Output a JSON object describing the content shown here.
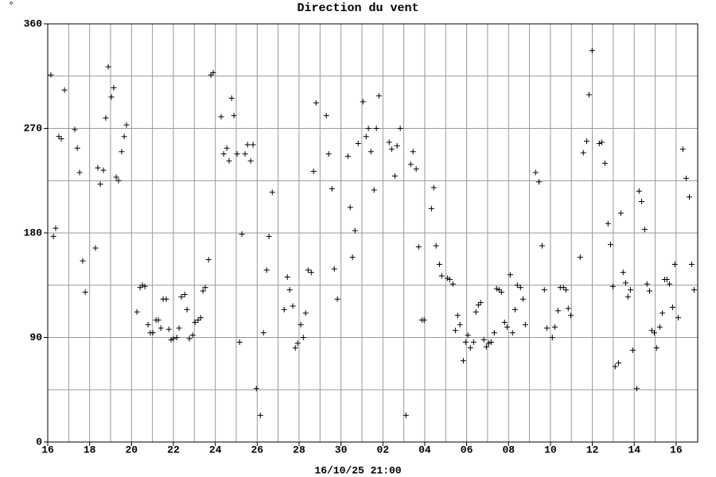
{
  "chart_data": {
    "type": "scatter",
    "title": "Direction du vent",
    "unit_label": "°",
    "x_label": "16/10/25 21:00",
    "marker": "+",
    "color": "#000000",
    "grid": true,
    "grid_color": "#999999",
    "xlim": [
      0,
      31.03
    ],
    "xticks": [
      {
        "value": 0,
        "label": "16"
      },
      {
        "value": 2,
        "label": "18"
      },
      {
        "value": 4,
        "label": "20"
      },
      {
        "value": 6,
        "label": "22"
      },
      {
        "value": 8,
        "label": "24"
      },
      {
        "value": 10,
        "label": "26"
      },
      {
        "value": 12,
        "label": "28"
      },
      {
        "value": 14,
        "label": "30"
      },
      {
        "value": 16,
        "label": "02"
      },
      {
        "value": 18,
        "label": "04"
      },
      {
        "value": 20,
        "label": "06"
      },
      {
        "value": 22,
        "label": "08"
      },
      {
        "value": 24,
        "label": "10"
      },
      {
        "value": 26,
        "label": "12"
      },
      {
        "value": 28,
        "label": "14"
      },
      {
        "value": 30,
        "label": "16"
      }
    ],
    "x_minor_ticks": [
      1,
      3,
      5,
      7,
      9,
      11,
      13,
      15,
      17,
      19,
      21,
      23,
      25,
      27,
      29
    ],
    "ylim": [
      0,
      360
    ],
    "yticks": [
      0,
      90,
      180,
      270,
      360
    ],
    "y_minor_ticks": [
      45,
      135,
      225,
      315
    ],
    "x": [
      0.15,
      0.27,
      0.38,
      0.53,
      0.65,
      0.8,
      1.29,
      1.41,
      1.52,
      1.67,
      1.79,
      2.28,
      2.39,
      2.51,
      2.66,
      2.77,
      2.89,
      3.04,
      3.15,
      3.27,
      3.38,
      3.53,
      3.65,
      3.76,
      4.26,
      4.41,
      4.52,
      4.64,
      4.79,
      4.9,
      5.02,
      5.17,
      5.28,
      5.4,
      5.51,
      5.66,
      5.78,
      5.89,
      6.0,
      6.16,
      6.27,
      6.38,
      6.54,
      6.65,
      6.76,
      6.92,
      7.03,
      7.18,
      7.3,
      7.41,
      7.52,
      7.68,
      7.79,
      7.9,
      8.28,
      8.4,
      8.55,
      8.66,
      8.78,
      8.89,
      9.04,
      9.16,
      9.27,
      9.42,
      9.54,
      9.69,
      9.8,
      9.96,
      10.15,
      10.3,
      10.45,
      10.56,
      10.72,
      11.29,
      11.44,
      11.55,
      11.7,
      11.82,
      11.93,
      12.08,
      12.2,
      12.31,
      12.43,
      12.58,
      12.69,
      12.81,
      13.3,
      13.41,
      13.57,
      13.68,
      13.83,
      14.33,
      14.44,
      14.55,
      14.67,
      14.82,
      15.05,
      15.2,
      15.31,
      15.43,
      15.58,
      15.69,
      15.81,
      16.3,
      16.42,
      16.57,
      16.68,
      16.83,
      17.1,
      17.33,
      17.44,
      17.59,
      17.71,
      17.86,
      17.97,
      18.32,
      18.43,
      18.54,
      18.7,
      18.81,
      19.08,
      19.19,
      19.34,
      19.46,
      19.57,
      19.68,
      19.84,
      19.95,
      20.06,
      20.18,
      20.33,
      20.44,
      20.56,
      20.67,
      20.82,
      20.94,
      21.05,
      21.17,
      21.32,
      21.43,
      21.55,
      21.66,
      21.81,
      21.93,
      22.08,
      22.19,
      22.31,
      22.42,
      22.57,
      22.69,
      22.8,
      23.29,
      23.45,
      23.6,
      23.71,
      23.83,
      24.09,
      24.21,
      24.36,
      24.47,
      24.62,
      24.74,
      24.85,
      24.97,
      25.42,
      25.57,
      25.73,
      25.84,
      25.99,
      26.33,
      26.45,
      26.6,
      26.75,
      26.87,
      26.98,
      27.09,
      27.25,
      27.36,
      27.47,
      27.59,
      27.7,
      27.82,
      27.93,
      28.12,
      28.23,
      28.35,
      28.5,
      28.61,
      28.73,
      28.84,
      28.96,
      29.07,
      29.22,
      29.34,
      29.45,
      29.56,
      29.68,
      29.83,
      29.94,
      30.1,
      30.32,
      30.48,
      30.63,
      30.74,
      30.86
    ],
    "values": [
      316,
      177,
      184,
      263,
      261,
      303,
      269,
      253,
      232,
      156,
      129,
      167,
      236,
      222,
      234,
      279,
      323,
      297,
      305,
      228,
      225,
      250,
      263,
      273,
      112,
      133,
      135,
      134,
      101,
      94,
      94,
      105,
      105,
      98,
      123,
      123,
      97,
      88,
      89,
      90,
      98,
      125,
      127,
      114,
      89,
      92,
      103,
      105,
      107,
      130,
      133,
      157,
      316,
      318,
      280,
      248,
      253,
      242,
      296,
      281,
      248,
      86,
      179,
      248,
      256,
      242,
      256,
      46,
      23,
      94,
      148,
      177,
      215,
      114,
      142,
      131,
      117,
      81,
      85,
      101,
      90,
      111,
      148,
      146,
      233,
      292,
      281,
      248,
      218,
      149,
      123,
      246,
      202,
      159,
      182,
      257,
      293,
      263,
      270,
      250,
      217,
      270,
      298,
      258,
      252,
      229,
      255,
      270,
      23,
      239,
      250,
      235,
      168,
      105,
      105,
      201,
      219,
      169,
      153,
      143,
      141,
      140,
      136,
      96,
      109,
      101,
      70,
      86,
      92,
      81,
      86,
      112,
      118,
      120,
      88,
      82,
      85,
      86,
      94,
      132,
      131,
      129,
      103,
      99,
      144,
      94,
      114,
      135,
      133,
      123,
      101,
      232,
      224,
      169,
      131,
      98,
      90,
      99,
      113,
      133,
      133,
      131,
      115,
      109,
      159,
      249,
      259,
      299,
      337,
      257,
      258,
      240,
      188,
      170,
      134,
      65,
      68,
      197,
      146,
      137,
      125,
      131,
      79,
      46,
      216,
      207,
      183,
      136,
      130,
      96,
      94,
      81,
      99,
      111,
      140,
      140,
      136,
      116,
      153,
      107,
      252,
      227,
      211,
      153,
      131
    ]
  }
}
